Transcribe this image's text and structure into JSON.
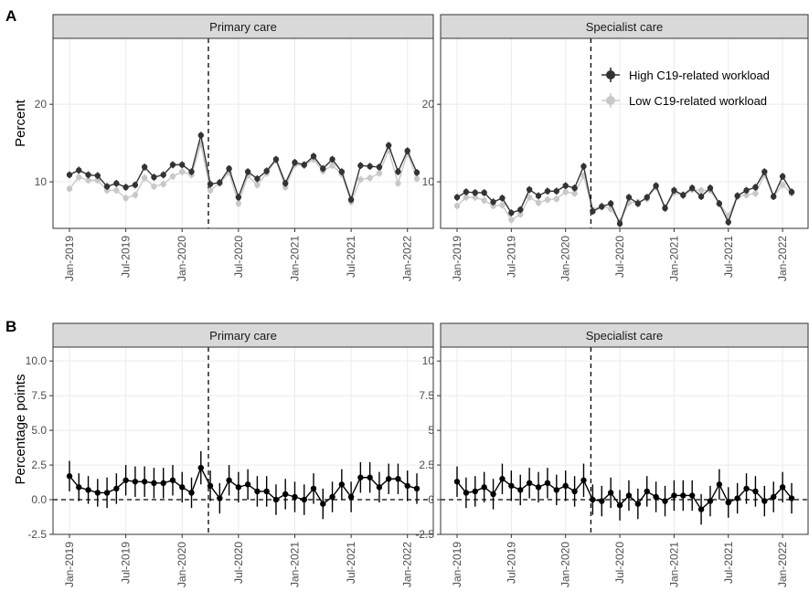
{
  "figure": {
    "panel_a_letter": "A",
    "panel_b_letter": "B",
    "panel_a_ylabel": "Percent",
    "panel_b_ylabel": "Percentage points",
    "facets": [
      "Primary care",
      "Specialist care"
    ]
  },
  "colors": {
    "high": "#333333",
    "low": "#c8c8c8",
    "diff": "#000000",
    "strip_bg": "#d9d9d9",
    "grid": "#ebebeb"
  },
  "chart_data": [
    {
      "type": "line",
      "panel": "A",
      "facet": "Primary care",
      "ylabel": "Percent",
      "ylim": [
        4,
        28.5
      ],
      "yticks": [
        10,
        20
      ],
      "x_tick_labels": [
        "Jan-2019",
        "Jul-2019",
        "Jan-2020",
        "Jul-2020",
        "Jan-2021",
        "Jul-2021",
        "Jan-2022"
      ],
      "reference_line_x": "Apr-2020",
      "legend": {
        "placement": "top-right (Specialist care facet)",
        "entries": [
          "High C19-related workload",
          "Low C19-related workload"
        ]
      },
      "series": [
        {
          "name": "High C19-related workload",
          "values": [
            10.9,
            11.5,
            10.9,
            10.8,
            9.4,
            9.8,
            9.3,
            9.6,
            11.9,
            10.6,
            10.9,
            12.2,
            12.2,
            11.3,
            16.0,
            9.7,
            9.9,
            11.7,
            8.0,
            11.3,
            10.4,
            11.4,
            12.9,
            9.8,
            12.5,
            12.2,
            13.3,
            11.7,
            12.9,
            11.3,
            7.7,
            12.1,
            12.0,
            11.9,
            14.7,
            11.3,
            14.0,
            11.2
          ]
        },
        {
          "name": "Low C19-related workload",
          "values": [
            9.1,
            10.6,
            10.2,
            10.2,
            8.9,
            8.9,
            7.9,
            8.3,
            10.5,
            9.4,
            9.7,
            10.7,
            11.3,
            10.9,
            14.9,
            8.9,
            9.8,
            11.2,
            7.2,
            10.8,
            9.6,
            11.1,
            12.8,
            9.3,
            12.2,
            12.1,
            12.9,
            11.4,
            12.1,
            11.0,
            7.4,
            10.3,
            10.5,
            11.1,
            14.1,
            9.8,
            13.7,
            10.4
          ]
        }
      ]
    },
    {
      "type": "line",
      "panel": "A",
      "facet": "Specialist care",
      "ylabel": "Percent",
      "ylim": [
        4,
        28.5
      ],
      "yticks": [
        10,
        20
      ],
      "x_tick_labels": [
        "Jan-2019",
        "Jul-2019",
        "Jan-2020",
        "Jul-2020",
        "Jan-2021",
        "Jul-2021",
        "Jan-2022"
      ],
      "reference_line_x": "Apr-2020",
      "series": [
        {
          "name": "High C19-related workload",
          "values": [
            8.0,
            8.7,
            8.6,
            8.6,
            7.4,
            7.9,
            6.0,
            6.4,
            9.0,
            8.2,
            8.8,
            8.8,
            9.5,
            9.2,
            12.0,
            6.2,
            6.8,
            7.2,
            4.6,
            8.0,
            7.2,
            8.0,
            9.5,
            6.6,
            8.9,
            8.3,
            9.2,
            8.1,
            9.2,
            7.2,
            4.8,
            8.2,
            8.9,
            9.3,
            11.3,
            8.1,
            10.7,
            8.7
          ]
        },
        {
          "name": "Low C19-related workload",
          "values": [
            6.9,
            8.0,
            8.0,
            7.6,
            6.9,
            7.0,
            5.1,
            5.8,
            8.0,
            7.3,
            7.7,
            7.8,
            8.7,
            8.5,
            10.8,
            6.4,
            6.9,
            6.5,
            4.9,
            7.3,
            7.4,
            7.8,
            9.3,
            6.7,
            8.6,
            8.2,
            9.0,
            8.9,
            8.9,
            7.2,
            5.6,
            8.1,
            8.3,
            8.5,
            10.9,
            8.1,
            9.6,
            8.5
          ]
        }
      ]
    },
    {
      "type": "line",
      "panel": "B",
      "facet": "Primary care",
      "ylabel": "Percentage points",
      "ylim": [
        -2.5,
        11.0
      ],
      "yticks": [
        -2.5,
        0.0,
        2.5,
        5.0,
        7.5,
        10.0
      ],
      "ytick_labels": [
        "-2.5",
        "0.0",
        "2.5",
        "5.0",
        "7.5",
        "10.0"
      ],
      "x_tick_labels": [
        "Jan-2019",
        "Jul-2019",
        "Jan-2020",
        "Jul-2020",
        "Jan-2021",
        "Jul-2021",
        "Jan-2022"
      ],
      "reference_line_x": "Apr-2020",
      "reference_line_y": 0,
      "series": [
        {
          "name": "",
          "values": [
            1.7,
            0.9,
            0.7,
            0.5,
            0.5,
            0.8,
            1.4,
            1.3,
            1.3,
            1.2,
            1.2,
            1.4,
            0.9,
            0.5,
            2.3,
            1.0,
            0.1,
            1.4,
            0.9,
            1.1,
            0.6,
            0.6,
            0.0,
            0.4,
            0.2,
            0.0,
            0.8,
            -0.3,
            0.2,
            1.1,
            0.2,
            1.6,
            1.6,
            0.9,
            1.5,
            1.5,
            1.0,
            0.8
          ],
          "ci_low": [
            0.6,
            -0.1,
            -0.3,
            -0.5,
            -0.6,
            -0.3,
            0.3,
            0.2,
            0.2,
            0.1,
            0.1,
            0.3,
            -0.2,
            -0.6,
            1.1,
            -0.1,
            -1.0,
            0.3,
            -0.2,
            0.0,
            -0.5,
            -0.5,
            -1.1,
            -0.7,
            -0.9,
            -1.1,
            -0.3,
            -1.4,
            -0.9,
            0.0,
            -0.9,
            0.5,
            0.5,
            -0.2,
            0.4,
            0.4,
            -0.1,
            -0.3
          ],
          "ci_high": [
            2.8,
            1.9,
            1.7,
            1.5,
            1.6,
            1.9,
            2.5,
            2.4,
            2.4,
            2.3,
            2.3,
            2.5,
            2.0,
            1.6,
            3.5,
            2.1,
            1.2,
            2.5,
            2.0,
            2.2,
            1.7,
            1.7,
            1.1,
            1.5,
            1.3,
            1.1,
            1.9,
            0.8,
            1.3,
            2.2,
            1.3,
            2.7,
            2.7,
            2.0,
            2.6,
            2.6,
            2.1,
            1.9
          ]
        }
      ]
    },
    {
      "type": "line",
      "panel": "B",
      "facet": "Specialist care",
      "ylabel": "Percentage points",
      "ylim": [
        -2.5,
        11.0
      ],
      "yticks": [
        -2.5,
        0.0,
        2.5,
        5.0,
        7.5,
        10.0
      ],
      "x_tick_labels": [
        "Jan-2019",
        "Jul-2019",
        "Jan-2020",
        "Jul-2020",
        "Jan-2021",
        "Jul-2021",
        "Jan-2022"
      ],
      "reference_line_x": "Apr-2020",
      "reference_line_y": 0,
      "series": [
        {
          "name": "",
          "values": [
            1.3,
            0.5,
            0.6,
            0.9,
            0.4,
            1.5,
            1.0,
            0.7,
            1.2,
            0.9,
            1.2,
            0.7,
            1.0,
            0.6,
            1.4,
            0.0,
            -0.1,
            0.5,
            -0.4,
            0.3,
            -0.3,
            0.6,
            0.2,
            -0.1,
            0.3,
            0.3,
            0.3,
            -0.7,
            -0.1,
            1.1,
            -0.2,
            0.1,
            0.8,
            0.6,
            -0.1,
            0.2,
            0.9,
            0.1
          ],
          "ci_low": [
            0.2,
            -0.6,
            -0.5,
            -0.2,
            -0.7,
            0.4,
            -0.1,
            -0.4,
            0.1,
            -0.2,
            0.1,
            -0.4,
            -0.1,
            -0.5,
            0.2,
            -1.1,
            -1.2,
            -0.6,
            -1.5,
            -0.8,
            -1.4,
            -0.5,
            -0.9,
            -1.2,
            -0.8,
            -0.8,
            -0.8,
            -1.8,
            -1.2,
            0.0,
            -1.3,
            -1.0,
            -0.3,
            -0.5,
            -1.2,
            -0.9,
            -0.2,
            -1.0
          ],
          "ci_high": [
            2.4,
            1.6,
            1.7,
            2.0,
            1.5,
            2.6,
            2.1,
            1.8,
            2.3,
            2.0,
            2.3,
            1.8,
            2.1,
            1.7,
            2.6,
            1.1,
            1.0,
            1.6,
            0.7,
            1.4,
            0.8,
            1.7,
            1.3,
            1.0,
            1.4,
            1.4,
            1.4,
            0.4,
            1.0,
            2.2,
            0.9,
            1.2,
            1.9,
            1.7,
            1.0,
            1.3,
            2.0,
            1.2
          ]
        }
      ]
    }
  ]
}
